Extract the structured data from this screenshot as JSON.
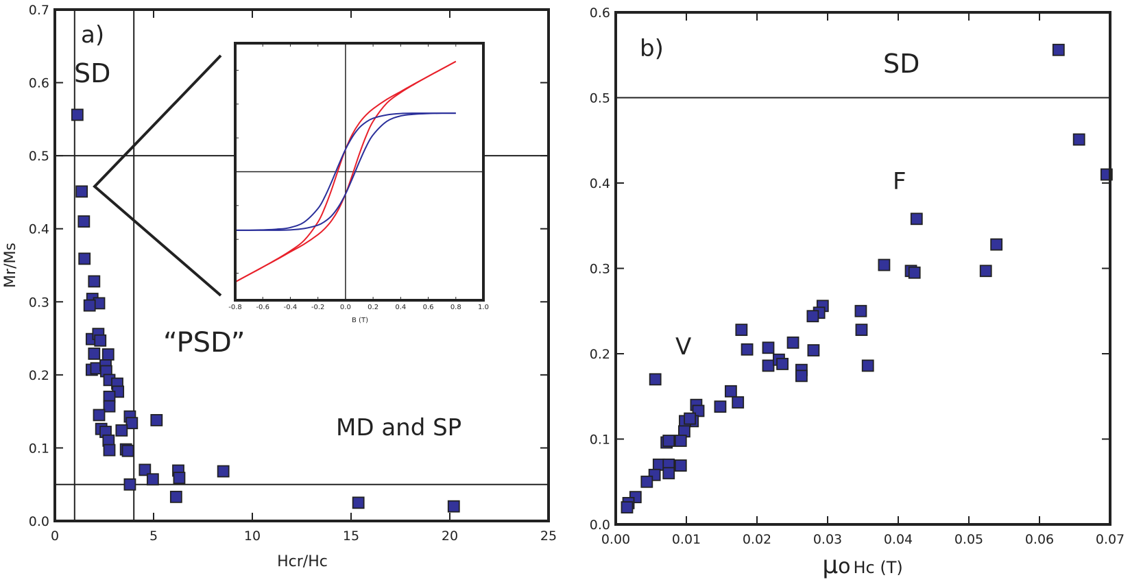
{
  "colors": {
    "marker_fill": "#333399",
    "marker_stroke": "#222222",
    "inset_red": "#e8202a",
    "inset_blue": "#2a2f9a",
    "axis": "#222222"
  },
  "chart_data": [
    {
      "type": "scatter",
      "panel_label": "a)",
      "xlabel": "Hcr/Hc",
      "ylabel": "Mr/Ms",
      "xlim": [
        0,
        25
      ],
      "ylim": [
        0,
        0.7
      ],
      "xticks": [
        0,
        5,
        10,
        15,
        20,
        25
      ],
      "xtick_labels": [
        "0",
        "5",
        "10",
        "15",
        "20",
        "25"
      ],
      "yticks": [
        0,
        0.1,
        0.2,
        0.3,
        0.4,
        0.5,
        0.6,
        0.7
      ],
      "ytick_labels": [
        "0.0",
        "0.1",
        "0.2",
        "0.3",
        "0.4",
        "0.5",
        "0.6",
        "0.7"
      ],
      "reference_lines": {
        "vertical": [
          1,
          4
        ],
        "horizontal": [
          0.5,
          0.05
        ]
      },
      "annotations": [
        {
          "text": "SD"
        },
        {
          "text": "“PSD”"
        },
        {
          "text": "MD and SP"
        }
      ],
      "points": [
        [
          1.14,
          0.556
        ],
        [
          1.36,
          0.451
        ],
        [
          1.47,
          0.41
        ],
        [
          1.5,
          0.359
        ],
        [
          1.99,
          0.328
        ],
        [
          1.9,
          0.304
        ],
        [
          2.24,
          0.298
        ],
        [
          1.76,
          0.295
        ],
        [
          1.87,
          0.249
        ],
        [
          2.2,
          0.256
        ],
        [
          2.3,
          0.247
        ],
        [
          1.99,
          0.229
        ],
        [
          2.7,
          0.228
        ],
        [
          1.87,
          0.207
        ],
        [
          2.1,
          0.209
        ],
        [
          2.57,
          0.213
        ],
        [
          2.6,
          0.205
        ],
        [
          2.76,
          0.193
        ],
        [
          3.16,
          0.188
        ],
        [
          3.2,
          0.177
        ],
        [
          2.76,
          0.17
        ],
        [
          2.76,
          0.157
        ],
        [
          2.24,
          0.145
        ],
        [
          3.8,
          0.143
        ],
        [
          3.9,
          0.134
        ],
        [
          5.15,
          0.138
        ],
        [
          2.35,
          0.126
        ],
        [
          2.57,
          0.122
        ],
        [
          3.38,
          0.124
        ],
        [
          2.72,
          0.11
        ],
        [
          2.76,
          0.097
        ],
        [
          3.6,
          0.098
        ],
        [
          3.7,
          0.096
        ],
        [
          3.8,
          0.05
        ],
        [
          4.56,
          0.07
        ],
        [
          4.96,
          0.057
        ],
        [
          6.25,
          0.069
        ],
        [
          6.3,
          0.059
        ],
        [
          6.14,
          0.033
        ],
        [
          8.53,
          0.068
        ],
        [
          15.37,
          0.025
        ],
        [
          20.2,
          0.02
        ]
      ],
      "inset": {
        "type": "line",
        "xlabel": "B (T)",
        "xlim": [
          -0.8,
          1.0
        ],
        "ylim": [
          -3.8,
          3.8
        ],
        "xticks": [
          -0.8,
          -0.6,
          -0.4,
          -0.2,
          0.0,
          0.2,
          0.4,
          0.6,
          0.8,
          1.0
        ],
        "xtick_labels": [
          "-0.8",
          "-0.6",
          "-0.4",
          "-0.2",
          "0.0",
          "0.2",
          "0.4",
          "0.6",
          "0.8",
          "1.0"
        ],
        "yticks": [
          -3,
          -2,
          -1,
          0,
          1,
          2,
          3
        ],
        "x": [
          -0.8,
          -0.7,
          -0.6,
          -0.5,
          -0.4,
          -0.3,
          -0.2,
          -0.15,
          -0.1,
          -0.05,
          0,
          0.05,
          0.1,
          0.15,
          0.2,
          0.3,
          0.4,
          0.5,
          0.6,
          0.7,
          0.8
        ],
        "series": [
          {
            "color": "red",
            "upper": [
              -3.26,
              -3.04,
              -2.82,
              -2.59,
              -2.34,
              -2.03,
              -1.49,
              -1.06,
              -0.52,
              0.09,
              0.66,
              1.11,
              1.44,
              1.68,
              1.86,
              2.14,
              2.37,
              2.6,
              2.82,
              3.04,
              3.26
            ],
            "lower": [
              -3.26,
              -3.04,
              -2.82,
              -2.6,
              -2.37,
              -2.14,
              -1.86,
              -1.68,
              -1.44,
              -1.11,
              -0.66,
              -0.09,
              0.52,
              1.06,
              1.49,
              2.03,
              2.34,
              2.59,
              2.82,
              3.04,
              3.26
            ]
          },
          {
            "color": "blue",
            "upper": [
              -1.73,
              -1.73,
              -1.72,
              -1.7,
              -1.65,
              -1.49,
              -1.09,
              -0.74,
              -0.29,
              0.2,
              0.66,
              1.03,
              1.3,
              1.47,
              1.58,
              1.68,
              1.72,
              1.73,
              1.73,
              1.73,
              1.73
            ],
            "lower": [
              -1.73,
              -1.73,
              -1.73,
              -1.73,
              -1.72,
              -1.68,
              -1.58,
              -1.47,
              -1.3,
              -1.03,
              -0.66,
              -0.2,
              0.29,
              0.74,
              1.09,
              1.49,
              1.65,
              1.7,
              1.72,
              1.73,
              1.73
            ]
          }
        ]
      }
    },
    {
      "type": "scatter",
      "panel_label": "b)",
      "xlabel_parts": [
        "μ",
        "o",
        "Hc (T)"
      ],
      "ylabel": "",
      "xlim": [
        0,
        0.07
      ],
      "ylim": [
        0,
        0.6
      ],
      "xticks": [
        0,
        0.01,
        0.02,
        0.03,
        0.04,
        0.05,
        0.06,
        0.07
      ],
      "xtick_labels": [
        "0.00",
        "0.01",
        "0.02",
        "0.03",
        "0.04",
        "0.05",
        "0.06",
        "0.07"
      ],
      "yticks": [
        0,
        0.1,
        0.2,
        0.3,
        0.4,
        0.5,
        0.6
      ],
      "ytick_labels": [
        "0.0",
        "0.1",
        "0.2",
        "0.3",
        "0.4",
        "0.5",
        "0.6"
      ],
      "reference_lines": {
        "horizontal": [
          0.5
        ]
      },
      "annotations": [
        {
          "text": "SD"
        },
        {
          "text": "F"
        },
        {
          "text": "V"
        }
      ],
      "points": [
        [
          0.0627,
          0.556
        ],
        [
          0.0656,
          0.451
        ],
        [
          0.0695,
          0.41
        ],
        [
          0.0426,
          0.358
        ],
        [
          0.0539,
          0.328
        ],
        [
          0.0524,
          0.297
        ],
        [
          0.038,
          0.304
        ],
        [
          0.0418,
          0.297
        ],
        [
          0.0423,
          0.295
        ],
        [
          0.0347,
          0.25
        ],
        [
          0.0348,
          0.228
        ],
        [
          0.0357,
          0.186
        ],
        [
          0.0293,
          0.256
        ],
        [
          0.0288,
          0.248
        ],
        [
          0.0279,
          0.244
        ],
        [
          0.028,
          0.204
        ],
        [
          0.0251,
          0.213
        ],
        [
          0.0178,
          0.228
        ],
        [
          0.0186,
          0.205
        ],
        [
          0.0216,
          0.207
        ],
        [
          0.0216,
          0.186
        ],
        [
          0.0231,
          0.193
        ],
        [
          0.0236,
          0.188
        ],
        [
          0.0263,
          0.181
        ],
        [
          0.0263,
          0.174
        ],
        [
          0.0163,
          0.156
        ],
        [
          0.0173,
          0.143
        ],
        [
          0.0148,
          0.138
        ],
        [
          0.0056,
          0.17
        ],
        [
          0.0114,
          0.14
        ],
        [
          0.0117,
          0.133
        ],
        [
          0.0109,
          0.121
        ],
        [
          0.0098,
          0.121
        ],
        [
          0.0105,
          0.124
        ],
        [
          0.0097,
          0.109
        ],
        [
          0.0092,
          0.098
        ],
        [
          0.0072,
          0.096
        ],
        [
          0.0075,
          0.098
        ],
        [
          0.0061,
          0.07
        ],
        [
          0.0075,
          0.07
        ],
        [
          0.0092,
          0.069
        ],
        [
          0.0075,
          0.06
        ],
        [
          0.0055,
          0.058
        ],
        [
          0.0044,
          0.05
        ],
        [
          0.0028,
          0.032
        ],
        [
          0.0018,
          0.025
        ],
        [
          0.0016,
          0.02
        ]
      ]
    }
  ]
}
